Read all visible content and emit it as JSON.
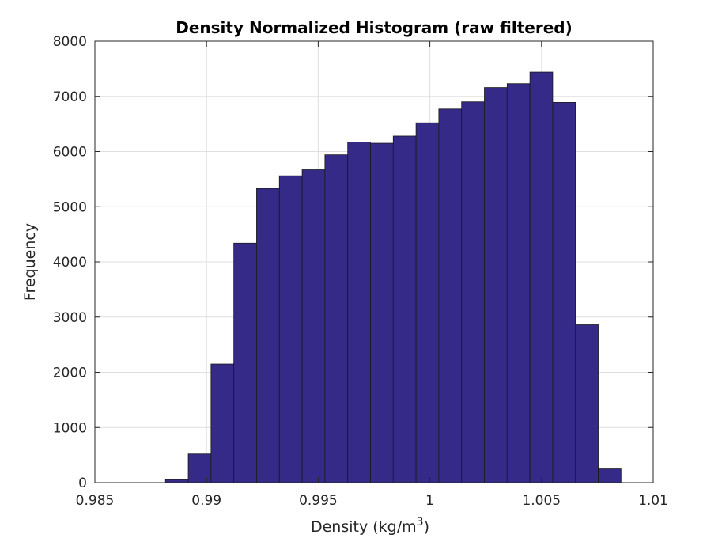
{
  "chart_data": {
    "type": "bar",
    "title": "Density Normalized  Histogram (raw  filtered)",
    "xlabel": "Density (kg/m",
    "xlabel_superscript": "3",
    "xlabel_suffix": ")",
    "ylabel": "Frequency",
    "xlim": [
      0.985,
      1.01
    ],
    "ylim": [
      0,
      8000
    ],
    "xticks": [
      0.985,
      0.99,
      0.995,
      1,
      1.005,
      1.01
    ],
    "xtick_labels": [
      "0.985",
      "0.99",
      "0.995",
      "1",
      "1.005",
      "1.01"
    ],
    "yticks": [
      0,
      1000,
      2000,
      3000,
      4000,
      5000,
      6000,
      7000,
      8000
    ],
    "ytick_labels": [
      "0",
      "1000",
      "2000",
      "3000",
      "4000",
      "5000",
      "6000",
      "7000",
      "8000"
    ],
    "grid": true,
    "bar_color": "#352a87",
    "bin_edges": [
      0.98816,
      0.98918,
      0.9902,
      0.99122,
      0.99224,
      0.99326,
      0.99428,
      0.9953,
      0.99632,
      0.99734,
      0.99836,
      0.99938,
      1.0004,
      1.00142,
      1.00244,
      1.00346,
      1.00448,
      1.0055,
      1.00652,
      1.00754,
      1.00856,
      1.00958
    ],
    "values": [
      55,
      520,
      2150,
      4340,
      5330,
      5560,
      5670,
      5940,
      6170,
      6150,
      6280,
      6520,
      6770,
      6900,
      7160,
      7230,
      7440,
      6890,
      2860,
      250,
      0
    ]
  }
}
